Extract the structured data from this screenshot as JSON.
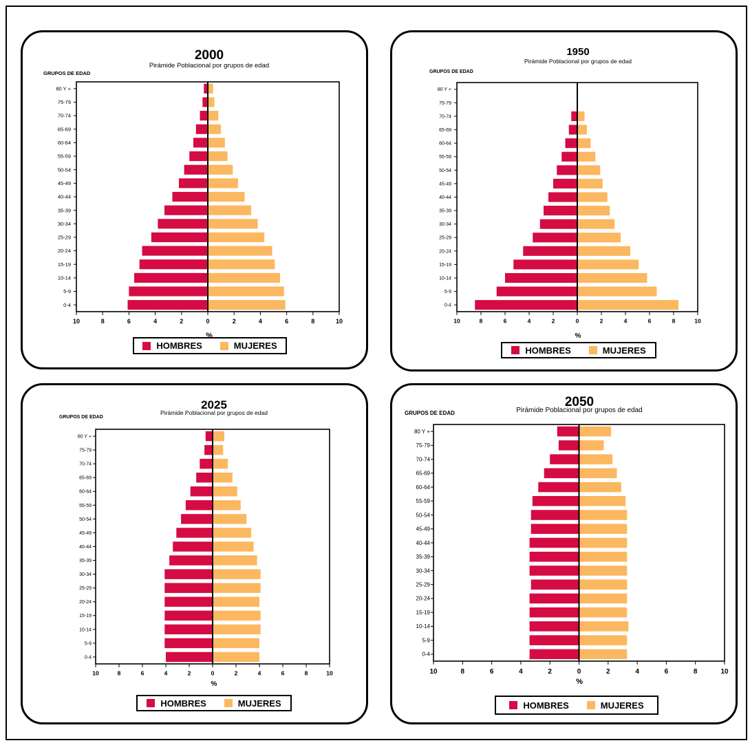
{
  "colors": {
    "hombres": "#d50b44",
    "mujeres": "#fbb860"
  },
  "chart_data": [
    {
      "type": "bar",
      "title": "2000",
      "subtitle": "Pirámide Poblacional por grupos de edad",
      "ylabel": "GRUPOS DE EDAD",
      "xlabel": "%",
      "xlim": [
        -10,
        10
      ],
      "x_tick_labels": [
        "10",
        "8",
        "6",
        "4",
        "2",
        "0",
        "2",
        "4",
        "6",
        "8",
        "10"
      ],
      "categories": [
        "80 Y +",
        "75-79",
        "70-74",
        "65-69",
        "60-64",
        "55-59",
        "50-54",
        "45-49",
        "40-44",
        "35-39",
        "30-34",
        "25-29",
        "20-24",
        "15-19",
        "10-14",
        "5-9",
        "0-4"
      ],
      "series": [
        {
          "name": "HOMBRES",
          "values": [
            0.3,
            0.4,
            0.6,
            0.9,
            1.1,
            1.4,
            1.8,
            2.2,
            2.7,
            3.3,
            3.8,
            4.3,
            5.0,
            5.2,
            5.6,
            6.0,
            6.1
          ]
        },
        {
          "name": "MUJERES",
          "values": [
            0.4,
            0.5,
            0.8,
            1.0,
            1.3,
            1.5,
            1.9,
            2.3,
            2.8,
            3.3,
            3.8,
            4.3,
            4.9,
            5.1,
            5.5,
            5.8,
            5.9
          ]
        }
      ],
      "legend_position": "bottom"
    },
    {
      "type": "bar",
      "title": "1950",
      "subtitle": "Pirámide Poblacional por grupos de edad",
      "ylabel": "GRUPOS DE EDAD",
      "xlabel": "%",
      "xlim": [
        -10,
        10
      ],
      "x_tick_labels": [
        "10",
        "8",
        "6",
        "4",
        "2",
        "0",
        "2",
        "4",
        "6",
        "8",
        "10"
      ],
      "categories": [
        "80 Y +",
        "75-79",
        "70-74",
        "65-69",
        "60-64",
        "55-59",
        "50-54",
        "45-49",
        "40-44",
        "35-39",
        "30-34",
        "25-29",
        "20-24",
        "15-19",
        "10-14",
        "5-9",
        "0-4"
      ],
      "series": [
        {
          "name": "HOMBRES",
          "values": [
            0,
            0,
            0.5,
            0.7,
            1.0,
            1.3,
            1.7,
            2.0,
            2.4,
            2.8,
            3.1,
            3.7,
            4.5,
            5.3,
            6.0,
            6.7,
            8.5
          ]
        },
        {
          "name": "MUJERES",
          "values": [
            0,
            0,
            0.6,
            0.8,
            1.1,
            1.5,
            1.9,
            2.1,
            2.5,
            2.7,
            3.1,
            3.6,
            4.4,
            5.1,
            5.8,
            6.6,
            8.4
          ]
        }
      ],
      "legend_position": "bottom"
    },
    {
      "type": "bar",
      "title": "2025",
      "subtitle": "Pirámide Poblacional por grupos de edad",
      "ylabel": "GRUPOS DE EDAD",
      "xlabel": "%",
      "xlim": [
        -10,
        10
      ],
      "x_tick_labels": [
        "10",
        "8",
        "6",
        "4",
        "2",
        "0",
        "2",
        "4",
        "6",
        "8",
        "10"
      ],
      "categories": [
        "80 Y +",
        "75-79",
        "70-74",
        "65-69",
        "60-64",
        "55-59",
        "50-54",
        "45-49",
        "40-44",
        "35-39",
        "30-34",
        "25-29",
        "20-24",
        "15-19",
        "10-14",
        "5-9",
        "0-4"
      ],
      "series": [
        {
          "name": "HOMBRES",
          "values": [
            0.6,
            0.7,
            1.1,
            1.4,
            1.9,
            2.3,
            2.7,
            3.1,
            3.4,
            3.7,
            4.1,
            4.1,
            4.1,
            4.1,
            4.1,
            4.1,
            4.0
          ]
        },
        {
          "name": "MUJERES",
          "values": [
            1.0,
            0.9,
            1.3,
            1.7,
            2.1,
            2.4,
            2.9,
            3.3,
            3.5,
            3.8,
            4.1,
            4.1,
            4.0,
            4.1,
            4.1,
            4.0,
            4.0
          ]
        }
      ],
      "legend_position": "bottom"
    },
    {
      "type": "bar",
      "title": "2050",
      "subtitle": "Pirámide Poblacional por grupos de edad",
      "ylabel": "GRUPOS DE EDAD",
      "xlabel": "%",
      "xlim": [
        -10,
        10
      ],
      "x_tick_labels": [
        "10",
        "8",
        "6",
        "4",
        "2",
        "0",
        "2",
        "4",
        "6",
        "8",
        "10"
      ],
      "categories": [
        "80 Y +",
        "75-79",
        "70-74",
        "65-69",
        "60-64",
        "55-59",
        "50-54",
        "45-49",
        "40-44",
        "35-39",
        "30-34",
        "25-29",
        "20-24",
        "15-19",
        "10-14",
        "5-9",
        "0-4"
      ],
      "series": [
        {
          "name": "HOMBRES",
          "values": [
            1.5,
            1.4,
            2.0,
            2.4,
            2.8,
            3.2,
            3.3,
            3.3,
            3.4,
            3.4,
            3.4,
            3.3,
            3.4,
            3.4,
            3.4,
            3.4,
            3.4
          ]
        },
        {
          "name": "MUJERES",
          "values": [
            2.2,
            1.7,
            2.3,
            2.6,
            2.9,
            3.2,
            3.3,
            3.3,
            3.3,
            3.3,
            3.3,
            3.3,
            3.3,
            3.3,
            3.4,
            3.3,
            3.3
          ]
        }
      ],
      "legend_position": "bottom"
    }
  ]
}
